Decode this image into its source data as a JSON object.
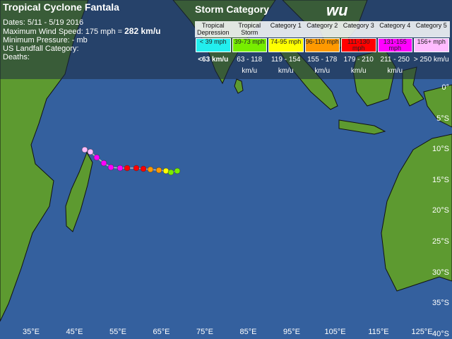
{
  "header": {
    "title": "Tropical Cyclone Fantala",
    "dates": "Dates: 5/11 - 5/19 2016",
    "wind_speed": "Maximum Wind Speed: 175 mph =",
    "wind_kmu": "282 km/u",
    "pressure": "Minimum Pressure: - mb",
    "landfall": "US Landfall Category:",
    "deaths": "Deaths:"
  },
  "legend": {
    "title": "Storm Category",
    "logo": "wu",
    "categories": [
      {
        "name": "Tropical Depression",
        "mph": "< 39 mph",
        "kmu": "<63 km/u",
        "color": "#22eeee"
      },
      {
        "name": "Tropical Storm",
        "mph": "39-73 mph",
        "kmu": "63 - 118 km/u",
        "color": "#77ee00"
      },
      {
        "name": "Category 1",
        "mph": "74-95 mph",
        "kmu": "119 - 154 km/u",
        "color": "#ffff00"
      },
      {
        "name": "Category 2",
        "mph": "96-110 mph",
        "kmu": "155 - 178 km/u",
        "color": "#ff9900"
      },
      {
        "name": "Category 3",
        "mph": "111-130 mph",
        "kmu": "179 - 210 km/u",
        "color": "#ff0000"
      },
      {
        "name": "Category 4",
        "mph": "131-155 mph",
        "kmu": "211 - 250 km/u",
        "color": "#ff00ff"
      },
      {
        "name": "Category 5",
        "mph": "156+ mph",
        "kmu": "> 250 km/u",
        "color": "#ffbbff"
      }
    ]
  },
  "map": {
    "longitude_labels": [
      "35°E",
      "45°E",
      "55°E",
      "65°E",
      "75°E",
      "85°E",
      "95°E",
      "105°E",
      "115°E",
      "125°E"
    ],
    "latitude_labels": [
      "0°",
      "5°S",
      "10°S",
      "15°S",
      "20°S",
      "25°S",
      "30°S",
      "35°S",
      "40°S"
    ]
  }
}
